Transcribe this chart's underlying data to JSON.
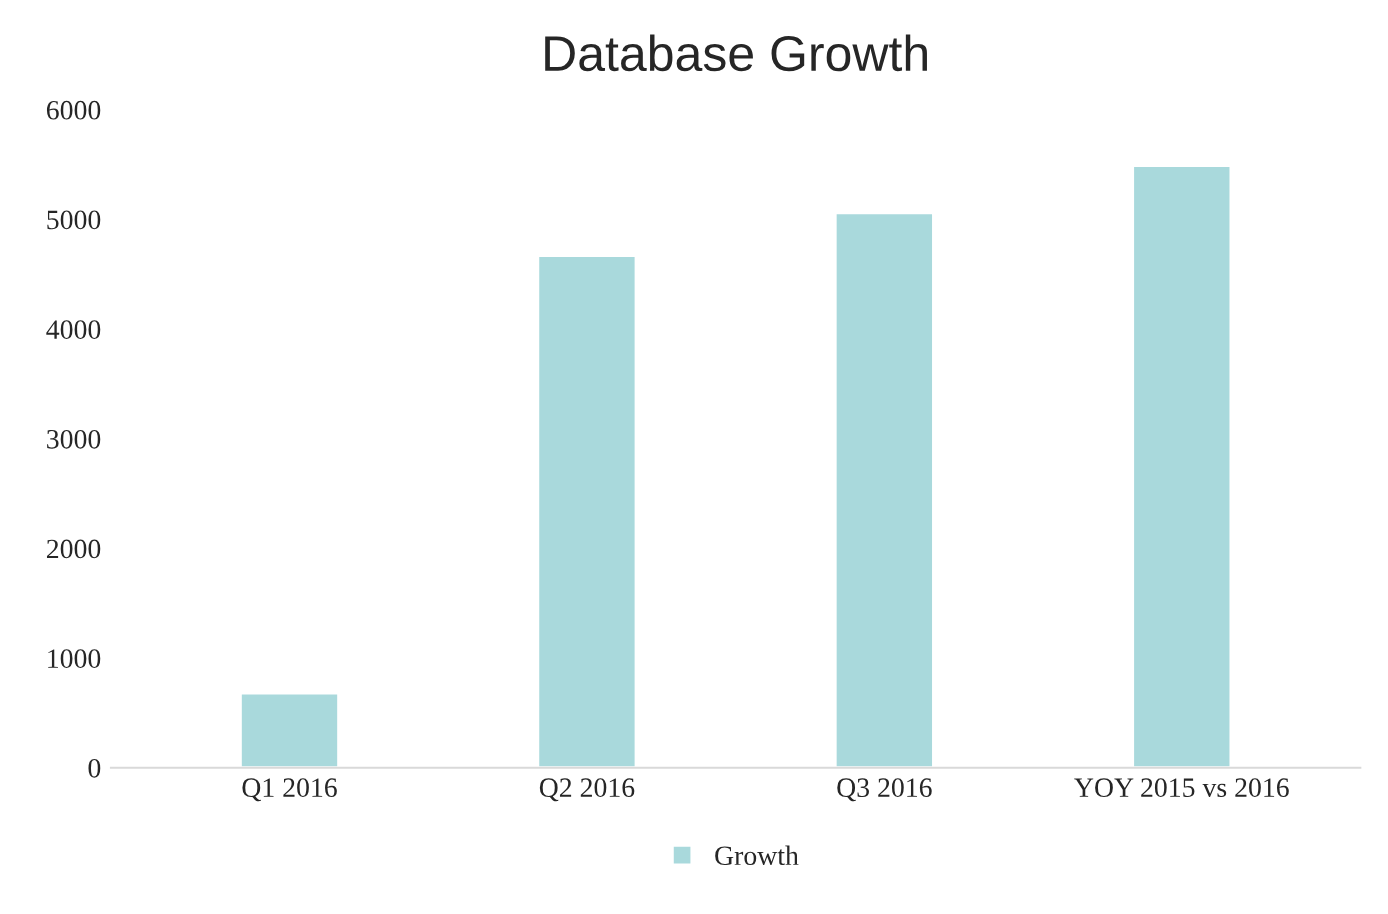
{
  "chart_data": {
    "type": "bar",
    "title": "Database Growth",
    "categories": [
      "Q1 2016",
      "Q2 2016",
      "Q3 2016",
      "YOY 2015 vs 2016"
    ],
    "series": [
      {
        "name": "Growth",
        "color": "#a9d9dc",
        "values": [
          680,
          4670,
          5060,
          5490
        ]
      }
    ],
    "ylim": [
      0,
      6000
    ],
    "yticks": [
      0,
      1000,
      2000,
      3000,
      4000,
      5000,
      6000
    ],
    "grid": false,
    "legend": "bottom"
  }
}
